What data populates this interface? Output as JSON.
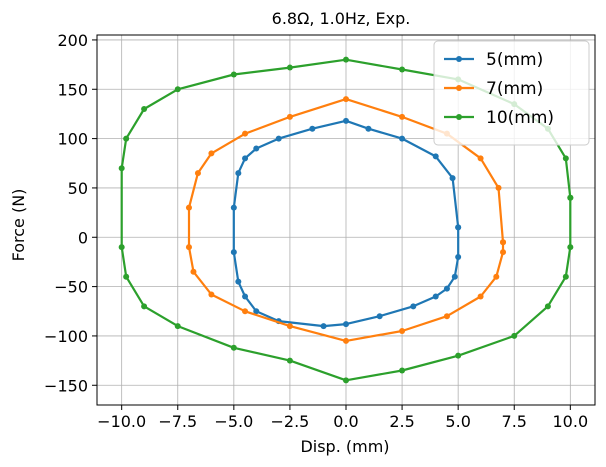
{
  "chart_data": {
    "type": "scatter",
    "title": "6.8Ω, 1.0Hz, Exp.",
    "xlabel": "Disp. (mm)",
    "ylabel": "Force (N)",
    "xlim": [
      -11.1,
      11.1
    ],
    "ylim": [
      -170,
      205
    ],
    "xticks": [
      -10.0,
      -7.5,
      -5.0,
      -2.5,
      0.0,
      2.5,
      5.0,
      7.5,
      10.0
    ],
    "xtick_labels": [
      "−10.0",
      "−7.5",
      "−5.0",
      "−2.5",
      "0.0",
      "2.5",
      "5.0",
      "7.5",
      "10.0"
    ],
    "yticks": [
      -150,
      -100,
      -50,
      0,
      50,
      100,
      150,
      200
    ],
    "ytick_labels": [
      "−150",
      "−100",
      "−50",
      "0",
      "50",
      "100",
      "150",
      "200"
    ],
    "grid": true,
    "legend_position": "top-right",
    "series": [
      {
        "name": "5(mm)",
        "color": "#1f77b4",
        "marker": "dot-line",
        "x": [
          5.0,
          4.75,
          4.0,
          2.5,
          1.0,
          0.0,
          -1.5,
          -3.0,
          -4.0,
          -4.5,
          -4.8,
          -5.0,
          -5.0,
          -4.8,
          -4.5,
          -4.0,
          -3.0,
          -1.0,
          0.0,
          1.5,
          3.0,
          4.0,
          4.5,
          4.85,
          5.0,
          5.0
        ],
        "y": [
          10,
          60,
          82,
          100,
          110,
          118,
          110,
          100,
          90,
          80,
          65,
          30,
          -15,
          -45,
          -60,
          -75,
          -85,
          -90,
          -88,
          -80,
          -70,
          -60,
          -52,
          -40,
          -20,
          10
        ]
      },
      {
        "name": "7(mm)",
        "color": "#ff7f0e",
        "marker": "dot-line",
        "x": [
          7.0,
          6.8,
          6.0,
          4.5,
          2.5,
          0.0,
          -2.5,
          -4.5,
          -6.0,
          -6.6,
          -7.0,
          -7.0,
          -6.8,
          -6.0,
          -4.5,
          -2.5,
          0.0,
          2.5,
          4.5,
          6.0,
          6.7,
          7.0,
          7.0
        ],
        "y": [
          -5,
          50,
          80,
          105,
          122,
          140,
          122,
          105,
          85,
          65,
          30,
          -10,
          -35,
          -58,
          -75,
          -90,
          -105,
          -95,
          -80,
          -60,
          -40,
          -15,
          -5
        ]
      },
      {
        "name": "10(mm)",
        "color": "#2ca02c",
        "marker": "dot-line",
        "x": [
          10.0,
          9.8,
          9.0,
          7.5,
          5.0,
          2.5,
          0.0,
          -2.5,
          -5.0,
          -7.5,
          -9.0,
          -9.8,
          -10.0,
          -10.0,
          -9.8,
          -9.0,
          -7.5,
          -5.0,
          -2.5,
          0.0,
          2.5,
          5.0,
          7.5,
          9.0,
          9.8,
          10.0,
          10.0
        ],
        "y": [
          40,
          80,
          110,
          135,
          160,
          170,
          180,
          172,
          165,
          150,
          130,
          100,
          70,
          -10,
          -40,
          -70,
          -90,
          -112,
          -125,
          -145,
          -135,
          -120,
          -100,
          -70,
          -40,
          -10,
          40
        ]
      }
    ]
  }
}
